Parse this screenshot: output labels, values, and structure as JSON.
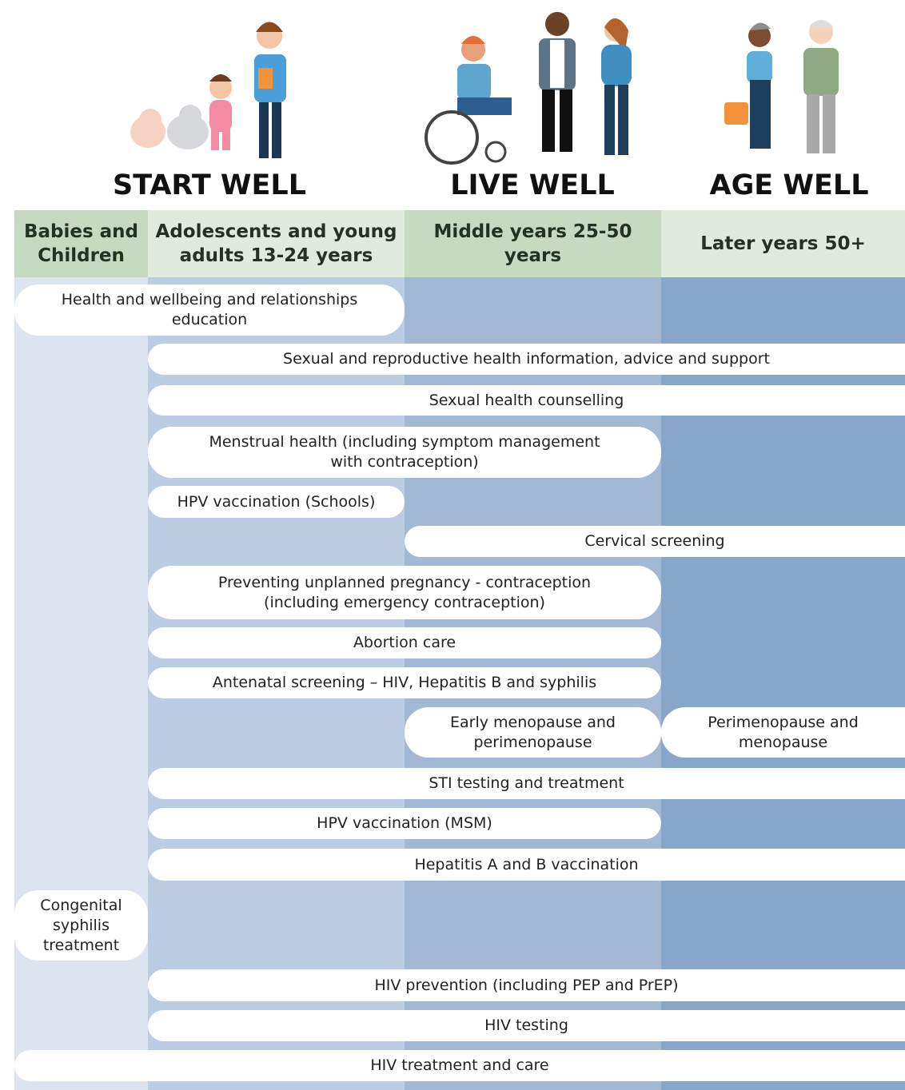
{
  "stages": [
    {
      "title": "START WELL"
    },
    {
      "title": "LIVE WELL"
    },
    {
      "title": "AGE WELL"
    }
  ],
  "columns": [
    {
      "lines": [
        "Babies and",
        "Children"
      ]
    },
    {
      "lines": [
        "Adolescents and young",
        "adults 13-24 years"
      ]
    },
    {
      "lines": [
        "Middle years 25-50",
        "years"
      ]
    },
    {
      "lines": [
        "Later years 50+"
      ]
    }
  ],
  "services": [
    {
      "lines": [
        "Health and wellbeing and relationships",
        "education"
      ]
    },
    {
      "lines": [
        "Sexual and reproductive health information, advice and support"
      ]
    },
    {
      "lines": [
        "Sexual health counselling"
      ]
    },
    {
      "lines": [
        "Menstrual health (including symptom management",
        "with contraception)"
      ]
    },
    {
      "lines": [
        "HPV vaccination (Schools)"
      ]
    },
    {
      "lines": [
        "Cervical screening"
      ]
    },
    {
      "lines": [
        "Preventing unplanned pregnancy - contraception",
        "(including emergency contraception)"
      ]
    },
    {
      "lines": [
        "Abortion care"
      ]
    },
    {
      "lines": [
        "Antenatal screening – HIV, Hepatitis B and syphilis"
      ]
    },
    {
      "lines": [
        "Early menopause and",
        "perimenopause"
      ]
    },
    {
      "lines": [
        "Perimenopause and",
        "menopause"
      ]
    },
    {
      "lines": [
        "STI testing and treatment"
      ]
    },
    {
      "lines": [
        "HPV vaccination (MSM)"
      ]
    },
    {
      "lines": [
        "Hepatitis A and B vaccination"
      ]
    },
    {
      "lines": [
        "Congenital",
        "syphilis",
        "treatment"
      ]
    },
    {
      "lines": [
        "HIV prevention (including PEP and PrEP)"
      ]
    },
    {
      "lines": [
        "HIV testing"
      ]
    },
    {
      "lines": [
        "HIV treatment and care"
      ]
    }
  ]
}
